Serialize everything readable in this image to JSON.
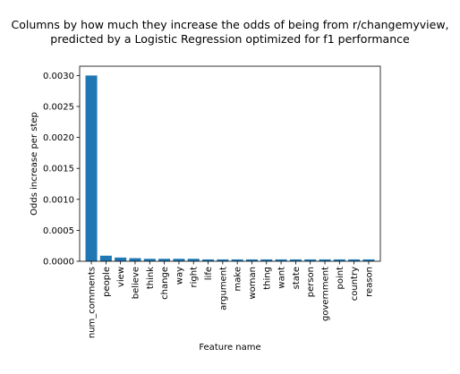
{
  "chart_data": {
    "type": "bar",
    "title_lines": [
      "Columns by how much they increase the odds of being from r/changemyview,",
      "predicted by a Logistic Regression optimized for f1 performance"
    ],
    "xlabel": "Feature name",
    "ylabel": "Odds increase per step",
    "categories": [
      "num_comments",
      "people",
      "view",
      "believe",
      "think",
      "change",
      "way",
      "right",
      "life",
      "argument",
      "make",
      "woman",
      "thing",
      "want",
      "state",
      "person",
      "government",
      "point",
      "country",
      "reason"
    ],
    "values": [
      0.003,
      9e-05,
      6e-05,
      5e-05,
      4e-05,
      4e-05,
      4e-05,
      4e-05,
      3e-05,
      3e-05,
      3e-05,
      3e-05,
      3e-05,
      3e-05,
      3e-05,
      3e-05,
      3e-05,
      3e-05,
      3e-05,
      3e-05
    ],
    "ylim": [
      0,
      0.00315
    ],
    "yticks": [
      0.0,
      0.0005,
      0.001,
      0.0015,
      0.002,
      0.0025,
      0.003
    ],
    "ytick_labels": [
      "0.0000",
      "0.0005",
      "0.0010",
      "0.0015",
      "0.0020",
      "0.0025",
      "0.0030"
    ],
    "bar_color": "#1f77b4",
    "grid": false,
    "legend": "none"
  }
}
